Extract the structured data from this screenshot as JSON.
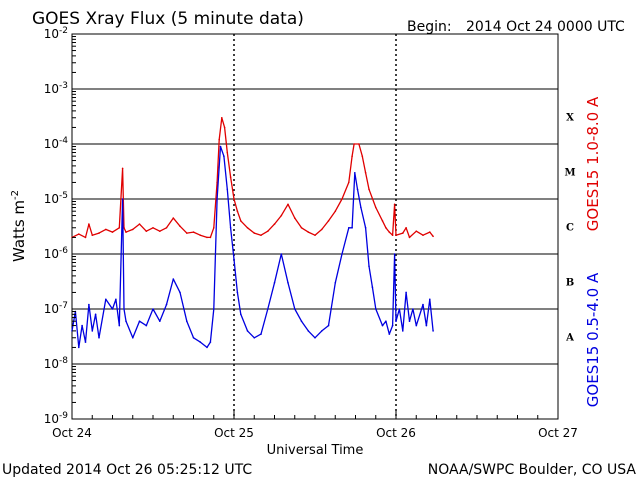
{
  "header": {
    "title": "GOES Xray Flux (5 minute data)",
    "begin_label": "Begin:",
    "begin_value": "2014 Oct 24 0000 UTC"
  },
  "footer": {
    "updated": "Updated 2014 Oct 26 05:25:12 UTC",
    "credit": "NOAA/SWPC Boulder, CO USA"
  },
  "chart_data": {
    "type": "line",
    "title": "GOES Xray Flux (5 minute data)",
    "xlabel": "Universal Time",
    "ylabel_text": "Watts m",
    "ylabel_superscript": "-2",
    "xlim_hours": [
      0,
      72
    ],
    "x_ticks": [
      {
        "hour": 0,
        "label": "Oct 24"
      },
      {
        "hour": 24,
        "label": "Oct 25"
      },
      {
        "hour": 48,
        "label": "Oct 26"
      },
      {
        "hour": 72,
        "label": "Oct 27"
      }
    ],
    "y_scale": "log",
    "ylim": [
      1e-09,
      0.01
    ],
    "y_ticks": [
      {
        "exp": -9,
        "base": "10",
        "sup": "-9"
      },
      {
        "exp": -8,
        "base": "10",
        "sup": "-8"
      },
      {
        "exp": -7,
        "base": "10",
        "sup": "-7"
      },
      {
        "exp": -6,
        "base": "10",
        "sup": "-6"
      },
      {
        "exp": -5,
        "base": "10",
        "sup": "-5"
      },
      {
        "exp": -4,
        "base": "10",
        "sup": "-4"
      },
      {
        "exp": -3,
        "base": "10",
        "sup": "-3"
      },
      {
        "exp": -2,
        "base": "10",
        "sup": "-2"
      }
    ],
    "flare_classes": [
      {
        "label": "A",
        "exp": -7.5
      },
      {
        "label": "B",
        "exp": -6.5
      },
      {
        "label": "C",
        "exp": -5.5
      },
      {
        "label": "M",
        "exp": -4.5
      },
      {
        "label": "X",
        "exp": -3.5
      }
    ],
    "series": [
      {
        "name": "GOES15 1.0-8.0 A",
        "color": "#e00000",
        "points": [
          [
            0.0,
            2e-06
          ],
          [
            1.0,
            2.3e-06
          ],
          [
            2.0,
            2e-06
          ],
          [
            2.5,
            3.5e-06
          ],
          [
            3.0,
            2.2e-06
          ],
          [
            4.0,
            2.4e-06
          ],
          [
            5.0,
            2.8e-06
          ],
          [
            6.0,
            2.5e-06
          ],
          [
            7.0,
            3e-06
          ],
          [
            7.5,
            3.6e-05
          ],
          [
            7.7,
            3e-06
          ],
          [
            8.0,
            2.5e-06
          ],
          [
            9.0,
            2.8e-06
          ],
          [
            10.0,
            3.5e-06
          ],
          [
            11.0,
            2.6e-06
          ],
          [
            12.0,
            3e-06
          ],
          [
            13.0,
            2.6e-06
          ],
          [
            14.0,
            3e-06
          ],
          [
            15.0,
            4.5e-06
          ],
          [
            16.0,
            3.2e-06
          ],
          [
            17.0,
            2.4e-06
          ],
          [
            18.0,
            2.5e-06
          ],
          [
            19.0,
            2.2e-06
          ],
          [
            20.0,
            2e-06
          ],
          [
            20.5,
            2e-06
          ],
          [
            21.0,
            3e-06
          ],
          [
            21.5,
            2e-05
          ],
          [
            21.8,
            0.00012
          ],
          [
            22.2,
            0.0003
          ],
          [
            22.6,
            0.0002
          ],
          [
            23.0,
            7e-05
          ],
          [
            23.5,
            2.5e-05
          ],
          [
            24.0,
            1e-05
          ],
          [
            24.5,
            6e-06
          ],
          [
            25.0,
            4e-06
          ],
          [
            26.0,
            3e-06
          ],
          [
            27.0,
            2.4e-06
          ],
          [
            28.0,
            2.2e-06
          ],
          [
            29.0,
            2.6e-06
          ],
          [
            30.0,
            3.5e-06
          ],
          [
            31.0,
            5e-06
          ],
          [
            32.0,
            8e-06
          ],
          [
            33.0,
            4.5e-06
          ],
          [
            34.0,
            3e-06
          ],
          [
            35.0,
            2.5e-06
          ],
          [
            36.0,
            2.2e-06
          ],
          [
            37.0,
            2.8e-06
          ],
          [
            38.0,
            4e-06
          ],
          [
            39.0,
            6e-06
          ],
          [
            40.0,
            1e-05
          ],
          [
            41.0,
            2e-05
          ],
          [
            41.5,
            6e-05
          ],
          [
            41.8,
            0.0001
          ],
          [
            42.5,
            0.0001
          ],
          [
            43.0,
            6e-05
          ],
          [
            43.5,
            3e-05
          ],
          [
            44.0,
            1.5e-05
          ],
          [
            45.0,
            7e-06
          ],
          [
            46.0,
            4e-06
          ],
          [
            46.5,
            3e-06
          ],
          [
            47.0,
            2.5e-06
          ],
          [
            47.5,
            2.2e-06
          ],
          [
            47.8,
            8e-06
          ],
          [
            48.0,
            2.2e-06
          ],
          [
            49.0,
            2.4e-06
          ],
          [
            49.5,
            3e-06
          ],
          [
            50.0,
            2e-06
          ],
          [
            51.0,
            2.6e-06
          ],
          [
            52.0,
            2.2e-06
          ],
          [
            53.0,
            2.5e-06
          ],
          [
            53.5,
            2.1e-06
          ]
        ]
      },
      {
        "name": "GOES15 0.5-4.0 A",
        "color": "#0000e0",
        "points": [
          [
            0.0,
            4e-08
          ],
          [
            0.5,
            9e-08
          ],
          [
            1.0,
            2e-08
          ],
          [
            1.5,
            5e-08
          ],
          [
            2.0,
            2.5e-08
          ],
          [
            2.5,
            1.2e-07
          ],
          [
            3.0,
            4e-08
          ],
          [
            3.5,
            8e-08
          ],
          [
            4.0,
            3e-08
          ],
          [
            5.0,
            1.5e-07
          ],
          [
            6.0,
            1e-07
          ],
          [
            6.5,
            1.5e-07
          ],
          [
            7.0,
            5e-08
          ],
          [
            7.5,
            1e-05
          ],
          [
            7.7,
            1e-07
          ],
          [
            8.0,
            6e-08
          ],
          [
            9.0,
            3e-08
          ],
          [
            10.0,
            6e-08
          ],
          [
            11.0,
            5e-08
          ],
          [
            12.0,
            1e-07
          ],
          [
            13.0,
            6e-08
          ],
          [
            14.0,
            1.2e-07
          ],
          [
            15.0,
            3.5e-07
          ],
          [
            16.0,
            2e-07
          ],
          [
            17.0,
            6e-08
          ],
          [
            18.0,
            3e-08
          ],
          [
            19.0,
            2.5e-08
          ],
          [
            20.0,
            2e-08
          ],
          [
            20.5,
            2.5e-08
          ],
          [
            21.0,
            1e-07
          ],
          [
            21.5,
            1e-05
          ],
          [
            22.0,
            9e-05
          ],
          [
            22.5,
            6e-05
          ],
          [
            23.0,
            1.5e-05
          ],
          [
            23.5,
            3e-06
          ],
          [
            24.0,
            8e-07
          ],
          [
            24.5,
            2e-07
          ],
          [
            25.0,
            8e-08
          ],
          [
            26.0,
            4e-08
          ],
          [
            27.0,
            3e-08
          ],
          [
            28.0,
            3.5e-08
          ],
          [
            29.0,
            1e-07
          ],
          [
            30.0,
            3e-07
          ],
          [
            31.0,
            1e-06
          ],
          [
            32.0,
            3e-07
          ],
          [
            33.0,
            1e-07
          ],
          [
            34.0,
            6e-08
          ],
          [
            35.0,
            4e-08
          ],
          [
            36.0,
            3e-08
          ],
          [
            37.0,
            4e-08
          ],
          [
            38.0,
            5e-08
          ],
          [
            39.0,
            3e-07
          ],
          [
            40.0,
            1e-06
          ],
          [
            41.0,
            3e-06
          ],
          [
            41.5,
            3e-06
          ],
          [
            41.9,
            3e-05
          ],
          [
            42.3,
            1.5e-05
          ],
          [
            42.8,
            7e-06
          ],
          [
            43.5,
            3e-06
          ],
          [
            44.0,
            6e-07
          ],
          [
            44.5,
            2.5e-07
          ],
          [
            45.0,
            1e-07
          ],
          [
            46.0,
            5e-08
          ],
          [
            46.5,
            6e-08
          ],
          [
            47.0,
            3.5e-08
          ],
          [
            47.5,
            5e-08
          ],
          [
            47.8,
            1e-06
          ],
          [
            48.0,
            6e-08
          ],
          [
            48.5,
            1e-07
          ],
          [
            49.0,
            4e-08
          ],
          [
            49.5,
            2e-07
          ],
          [
            50.0,
            6e-08
          ],
          [
            50.5,
            1e-07
          ],
          [
            51.0,
            5e-08
          ],
          [
            52.0,
            1.2e-07
          ],
          [
            52.5,
            5e-08
          ],
          [
            53.0,
            1.5e-07
          ],
          [
            53.5,
            4e-08
          ]
        ]
      }
    ]
  }
}
